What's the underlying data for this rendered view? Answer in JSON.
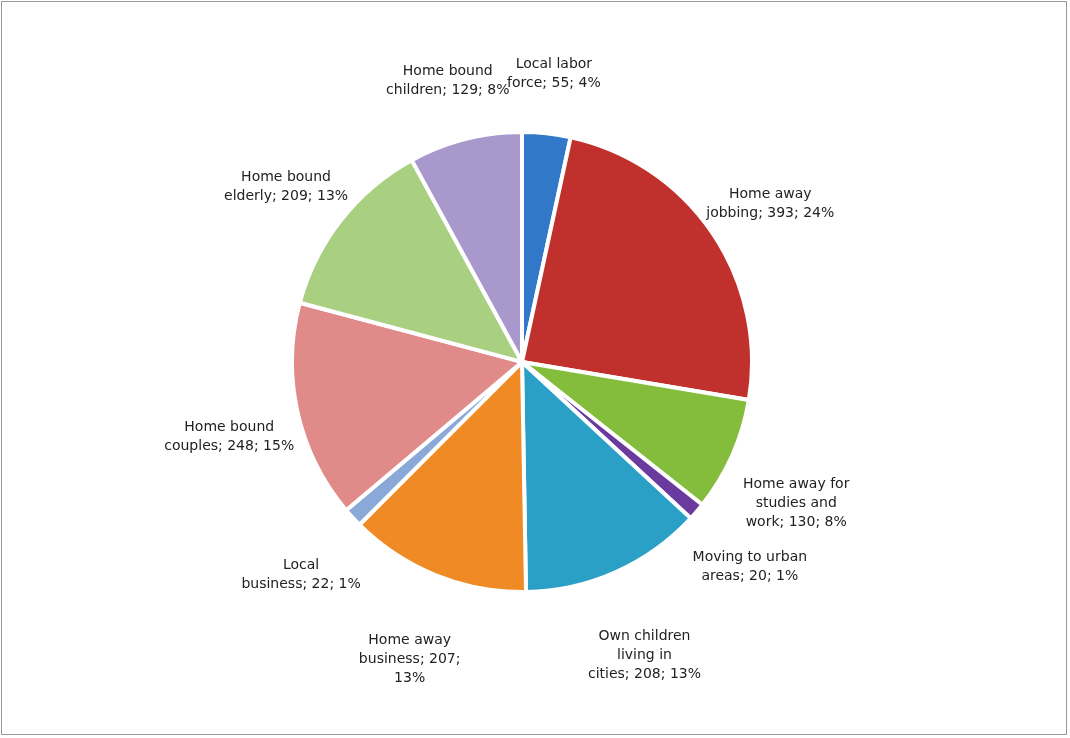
{
  "chart_data": {
    "type": "pie",
    "categories": [
      "Local labor force",
      "Home away jobbing",
      "Home away for studies and work",
      "Moving to urban areas",
      "Own children living in cities",
      "Home away business",
      "Local business",
      "Home bound couples",
      "Home bound elderly",
      "Home bound children"
    ],
    "values": [
      55,
      393,
      130,
      20,
      208,
      207,
      22,
      248,
      209,
      129
    ],
    "value_labels": [
      "55; 4%",
      "393; 24%",
      "130; 8%",
      "20; 1%",
      "208; 13%",
      "207; 13%",
      "22; 1%",
      "248; 15%",
      "209; 13%",
      "129; 8%"
    ],
    "colors": [
      "#3278c8",
      "#c0302c",
      "#84bc3c",
      "#6a3a9e",
      "#2aa0c6",
      "#f08a24",
      "#8aa8d8",
      "#e08a8a",
      "#a8d080",
      "#a898cc"
    ]
  }
}
